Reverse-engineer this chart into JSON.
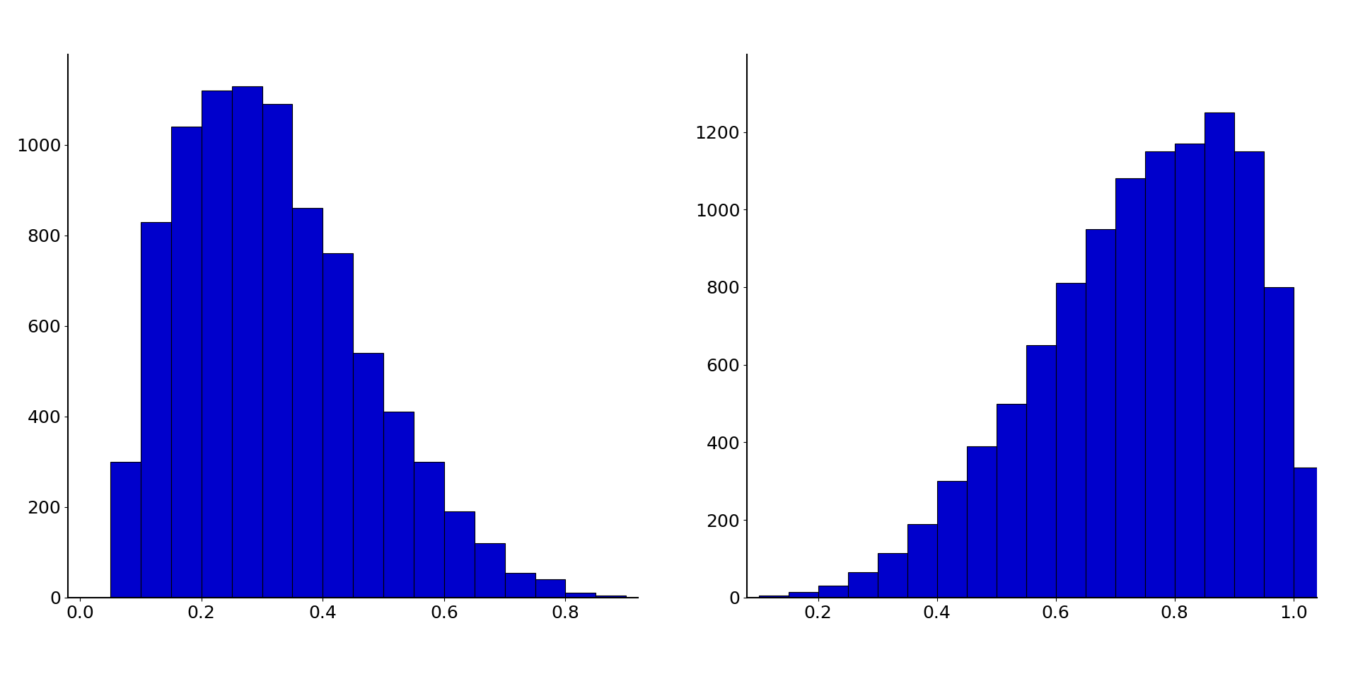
{
  "left_hist": {
    "bin_edges": [
      0.0,
      0.05,
      0.1,
      0.15,
      0.2,
      0.25,
      0.3,
      0.35,
      0.4,
      0.45,
      0.5,
      0.55,
      0.6,
      0.65,
      0.7,
      0.75,
      0.8,
      0.85,
      0.9
    ],
    "counts": [
      0,
      300,
      830,
      1040,
      1120,
      1130,
      1090,
      860,
      760,
      540,
      410,
      300,
      190,
      120,
      55,
      40,
      10,
      5
    ],
    "xlim": [
      -0.02,
      0.92
    ],
    "ylim": [
      0,
      1200
    ],
    "xticks": [
      0.0,
      0.2,
      0.4,
      0.6,
      0.8
    ],
    "yticks": [
      0,
      200,
      400,
      600,
      800,
      1000
    ]
  },
  "right_hist": {
    "bin_edges": [
      0.1,
      0.15,
      0.2,
      0.25,
      0.3,
      0.35,
      0.4,
      0.45,
      0.5,
      0.55,
      0.6,
      0.65,
      0.7,
      0.75,
      0.8,
      0.85,
      0.9,
      0.95,
      1.0,
      1.05
    ],
    "counts": [
      5,
      15,
      30,
      65,
      115,
      190,
      300,
      390,
      500,
      650,
      810,
      950,
      1080,
      1150,
      1170,
      1250,
      1150,
      800,
      335
    ],
    "xlim": [
      0.08,
      1.04
    ],
    "ylim": [
      0,
      1400
    ],
    "xticks": [
      0.2,
      0.4,
      0.6,
      0.8,
      1.0
    ],
    "yticks": [
      0,
      200,
      400,
      600,
      800,
      1000,
      1200
    ]
  },
  "bar_color": "#0000CC",
  "bar_edge_color": "black",
  "bar_linewidth": 0.8,
  "background_color": "white",
  "tick_fontsize": 18,
  "figure_bg": "white"
}
